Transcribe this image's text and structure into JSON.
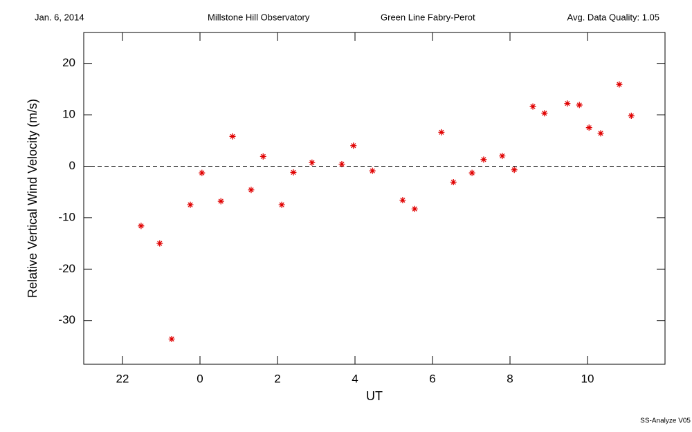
{
  "chart_data": {
    "type": "scatter",
    "header": [
      "Jan. 6, 2014",
      "Millstone Hill Observatory",
      "Green Line Fabry-Perot",
      "Avg. Data Quality: 1.05"
    ],
    "footer": "SS-Analyze V05",
    "xlabel": "UT",
    "ylabel": "Relative Vertical Wind Velocity (m/s)",
    "xlim": [
      21,
      36
    ],
    "ylim": [
      -38.5,
      26
    ],
    "xticks": [
      22,
      {
        "value": 24,
        "label": "0"
      },
      {
        "value": 26,
        "label": "2"
      },
      {
        "value": 28,
        "label": "4"
      },
      {
        "value": 30,
        "label": "6"
      },
      {
        "value": 32,
        "label": "8"
      },
      {
        "value": 34,
        "label": "10"
      }
    ],
    "yticks": [
      -30,
      -20,
      -10,
      0,
      10,
      20
    ],
    "hline": 0,
    "color": "#e00000",
    "x": [
      22.48,
      22.96,
      23.27,
      23.75,
      24.05,
      24.54,
      24.84,
      25.32,
      25.63,
      26.11,
      26.41,
      26.89,
      27.66,
      27.96,
      28.45,
      29.23,
      29.54,
      30.23,
      30.54,
      31.02,
      31.32,
      31.8,
      32.11,
      32.59,
      32.89,
      33.48,
      33.79,
      34.04,
      34.34,
      34.82,
      35.13
    ],
    "values": [
      -11.6,
      -15.0,
      -33.6,
      -7.5,
      -1.3,
      -6.8,
      5.8,
      -4.6,
      1.9,
      -7.5,
      -1.2,
      0.7,
      0.4,
      4.0,
      -0.9,
      -6.6,
      -8.3,
      6.6,
      -3.1,
      -1.3,
      1.3,
      2.0,
      -0.7,
      11.6,
      10.3,
      12.2,
      11.9,
      7.5,
      6.4,
      15.9,
      9.8
    ]
  }
}
